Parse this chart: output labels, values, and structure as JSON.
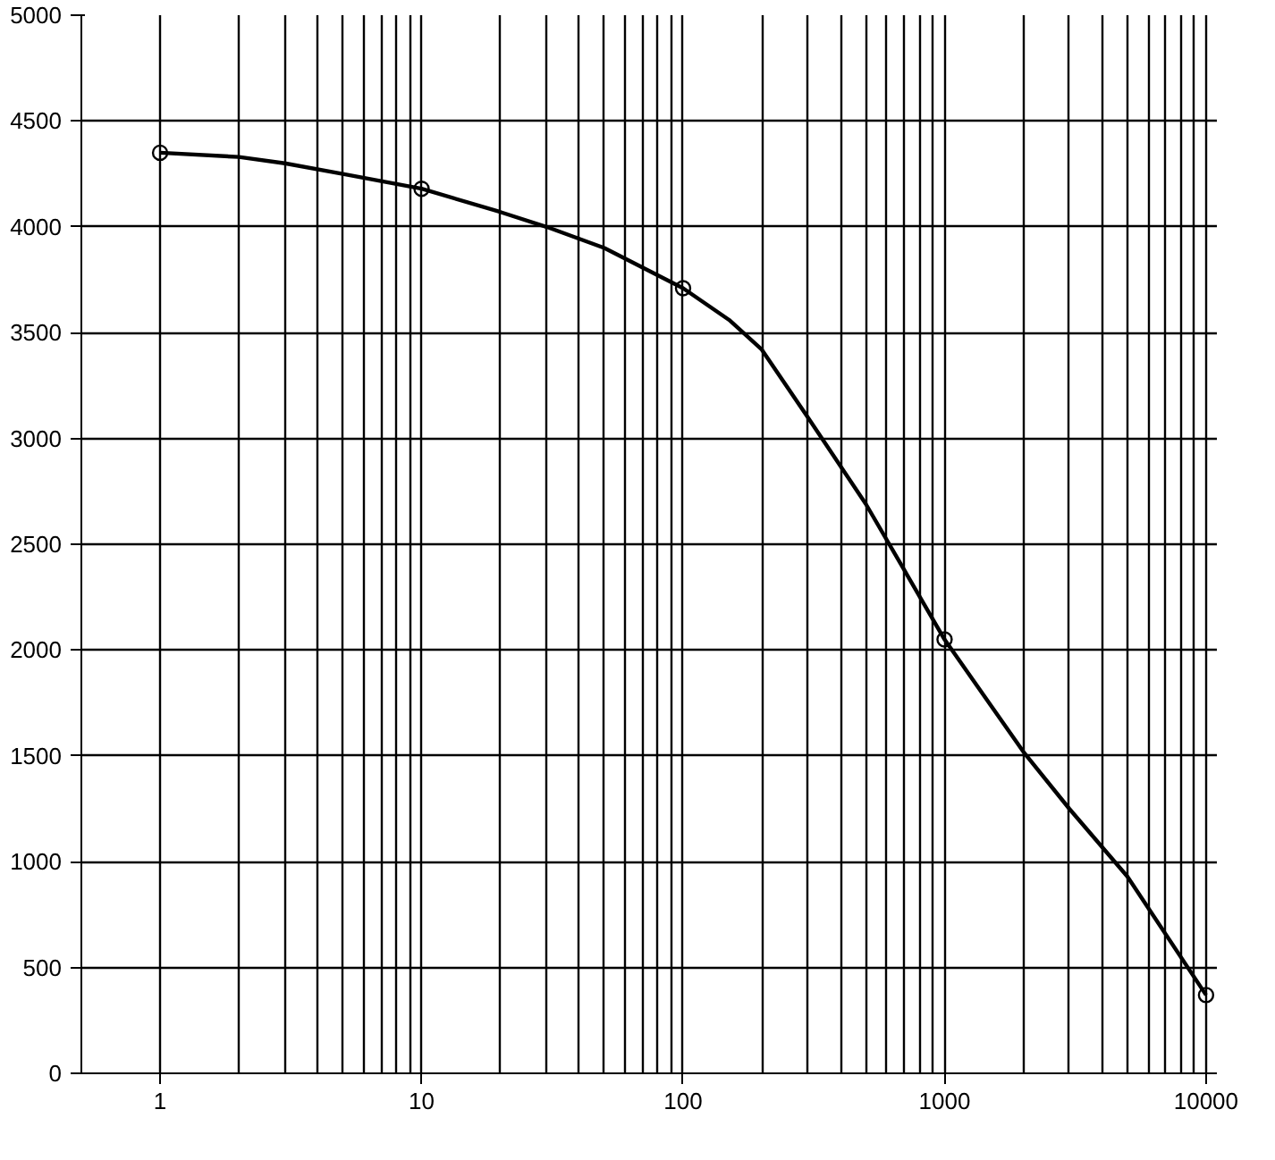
{
  "chart_data": {
    "type": "line",
    "log": "x",
    "xlim": [
      0.5,
      11000
    ],
    "ylim": [
      0,
      5000
    ],
    "xticks": [
      1,
      10,
      100,
      1000,
      10000
    ],
    "yticks": [
      0,
      500,
      1000,
      1500,
      2000,
      2500,
      3000,
      3500,
      4000,
      4500,
      5000
    ],
    "grid": true,
    "series": [
      {
        "color": "#000000",
        "marker": "none",
        "x": [
          1,
          2,
          3,
          5,
          10,
          20,
          30,
          50,
          100,
          150,
          200,
          300,
          500,
          700,
          1000,
          1500,
          2000,
          3000,
          5000,
          10000
        ],
        "values": [
          4350,
          4330,
          4300,
          4250,
          4180,
          4070,
          4000,
          3900,
          3710,
          3560,
          3420,
          3100,
          2690,
          2380,
          2050,
          1740,
          1520,
          1250,
          930,
          370
        ]
      },
      {
        "type": "scatter",
        "color": "#000000",
        "marker": "circle",
        "x": [
          1,
          10,
          100,
          1000,
          10000
        ],
        "values": [
          4350,
          4180,
          3710,
          2050,
          370
        ]
      }
    ]
  }
}
